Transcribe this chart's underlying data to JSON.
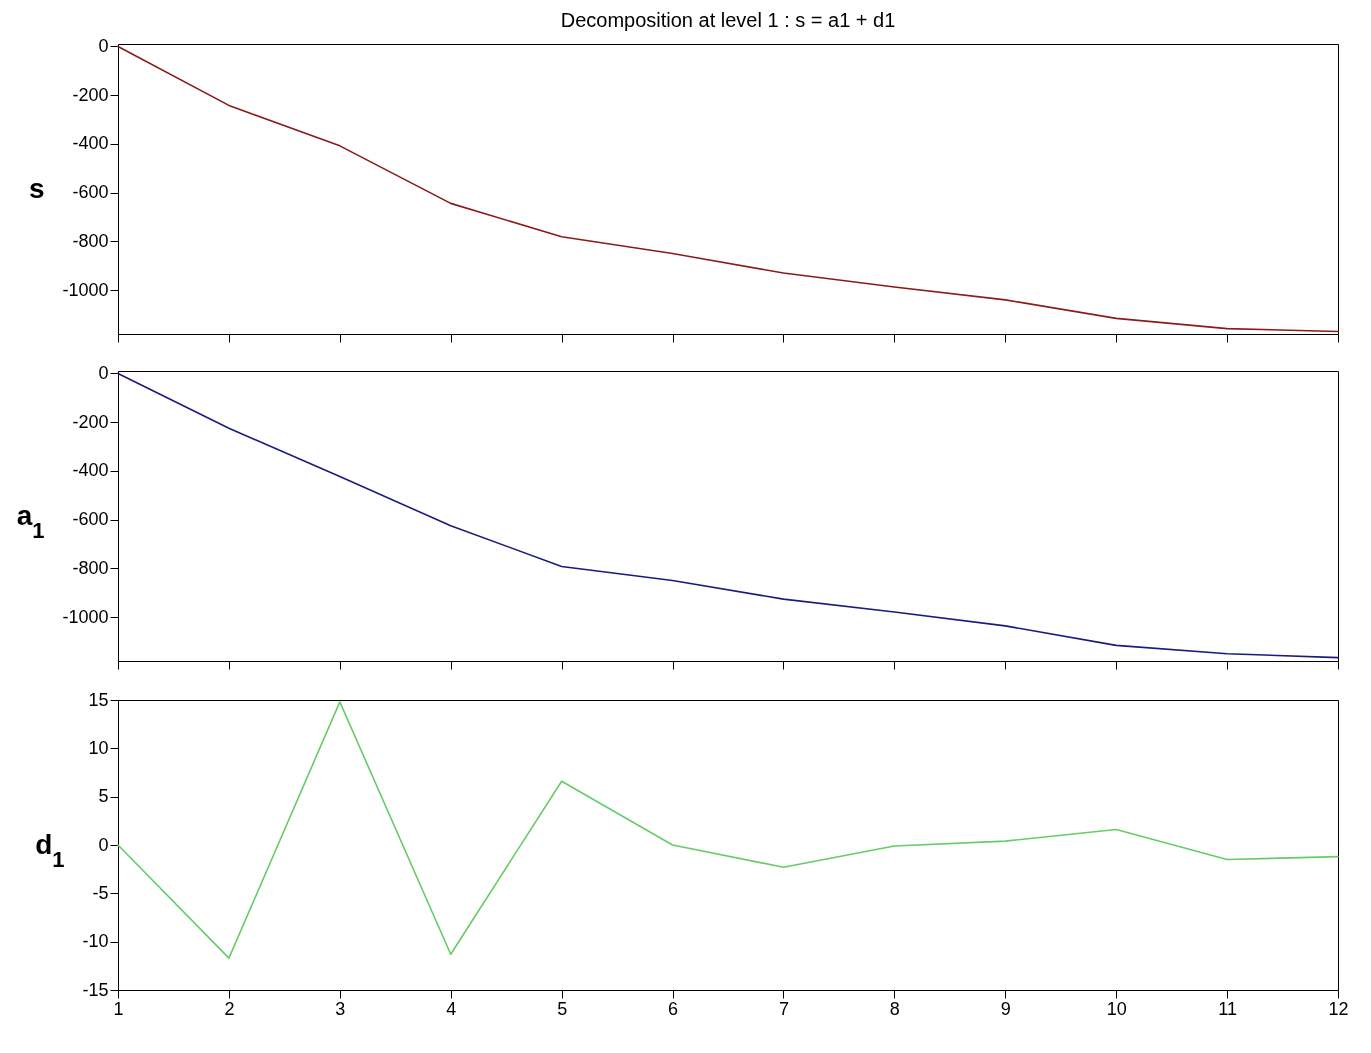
{
  "chart_data": [
    {
      "type": "line",
      "title": "Decomposition at level 1 : s = a1 + d1",
      "ylabel": "s",
      "x": [
        1,
        2,
        3,
        4,
        5,
        6,
        7,
        8,
        9,
        10,
        11,
        12
      ],
      "series": [
        {
          "color": "#8b1a1a",
          "values": [
            0,
            -242,
            -408,
            -644,
            -781,
            -850,
            -930,
            -987,
            -1040,
            -1116,
            -1158,
            -1170
          ]
        }
      ],
      "xlim": [
        1,
        12
      ],
      "xticks": [
        1,
        2,
        3,
        4,
        5,
        6,
        7,
        8,
        9,
        10,
        11,
        12
      ],
      "ylim": [
        -1180,
        10
      ],
      "yticks": [
        0,
        -200,
        -400,
        -600,
        -800,
        -1000
      ],
      "tick_labels": "y",
      "grid": false
    },
    {
      "type": "line",
      "ylabel": "a$_{1}$",
      "x": [
        1,
        2,
        3,
        4,
        5,
        6,
        7,
        8,
        9,
        10,
        11,
        12
      ],
      "series": [
        {
          "color": "#1a1a80",
          "values": [
            0,
            -225,
            -423,
            -625,
            -792,
            -850,
            -926,
            -979,
            -1036,
            -1116,
            -1150,
            -1166
          ]
        }
      ],
      "xlim": [
        1,
        12
      ],
      "xticks": [
        1,
        2,
        3,
        4,
        5,
        6,
        7,
        8,
        9,
        10,
        11,
        12
      ],
      "ylim": [
        -1180,
        10
      ],
      "yticks": [
        0,
        -200,
        -400,
        -600,
        -800,
        -1000
      ],
      "tick_labels": "y",
      "grid": false
    },
    {
      "type": "line",
      "ylabel": "d$_{1}$",
      "x": [
        1,
        2,
        3,
        4,
        5,
        6,
        7,
        8,
        9,
        10,
        11,
        12
      ],
      "series": [
        {
          "color": "#66cc66",
          "values": [
            0,
            -11.7,
            14.8,
            -11.3,
            6.6,
            0,
            -2.3,
            -0.1,
            0.4,
            1.6,
            -1.5,
            -1.2
          ]
        }
      ],
      "xlim": [
        1,
        12
      ],
      "xticks": [
        1,
        2,
        3,
        4,
        5,
        6,
        7,
        8,
        9,
        10,
        11,
        12
      ],
      "ylim": [
        -15,
        15
      ],
      "yticks": [
        15,
        10,
        5,
        0,
        -5,
        -10,
        -15
      ],
      "grid": false
    }
  ]
}
